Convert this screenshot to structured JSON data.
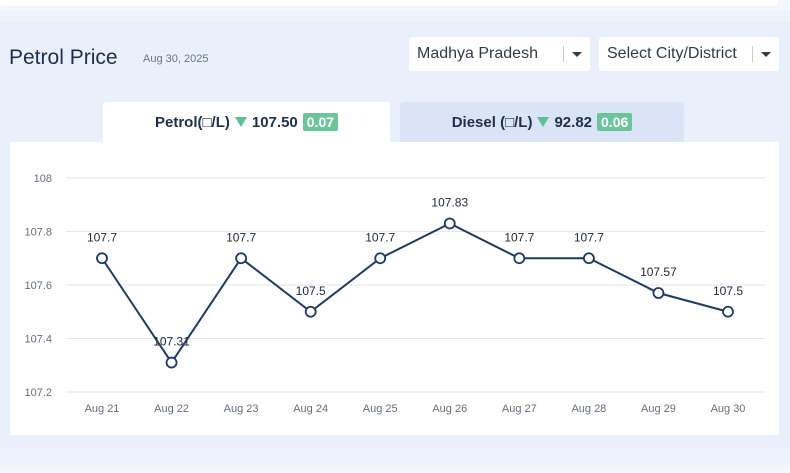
{
  "header": {
    "title": "Petrol Price",
    "date": "Aug 30, 2025"
  },
  "filters": {
    "state": "Madhya Pradesh",
    "city": "Select City/District"
  },
  "tabs": [
    {
      "label": "Petrol(□/L)",
      "price": "107.50",
      "change": "0.07",
      "direction": "down"
    },
    {
      "label": "Diesel (□/L)",
      "price": "92.82",
      "change": "0.06",
      "direction": "down"
    }
  ],
  "colors": {
    "line": "#1f3a5f",
    "badge": "#6cc59a",
    "arrow": "#5fbf94",
    "active_tab": "#ffffff",
    "inactive_tab": "#d9e4f7"
  },
  "chart_data": {
    "type": "line",
    "categories": [
      "Aug 21",
      "Aug 22",
      "Aug 23",
      "Aug 24",
      "Aug 25",
      "Aug 26",
      "Aug 27",
      "Aug 28",
      "Aug 29",
      "Aug 30"
    ],
    "values": [
      107.7,
      107.31,
      107.7,
      107.5,
      107.7,
      107.83,
      107.7,
      107.7,
      107.57,
      107.5
    ],
    "data_labels": [
      "107.7",
      "107.31",
      "107.7",
      "107.5",
      "107.7",
      "107.83",
      "107.7",
      "107.7",
      "107.57",
      "107.5"
    ],
    "y_ticks": [
      "108",
      "107.8",
      "107.6",
      "107.4",
      "107.2"
    ],
    "y_tick_values": [
      108,
      107.8,
      107.6,
      107.4,
      107.2
    ],
    "ylim": [
      107.2,
      108
    ],
    "grid": true,
    "title": "",
    "xlabel": "",
    "ylabel": ""
  }
}
